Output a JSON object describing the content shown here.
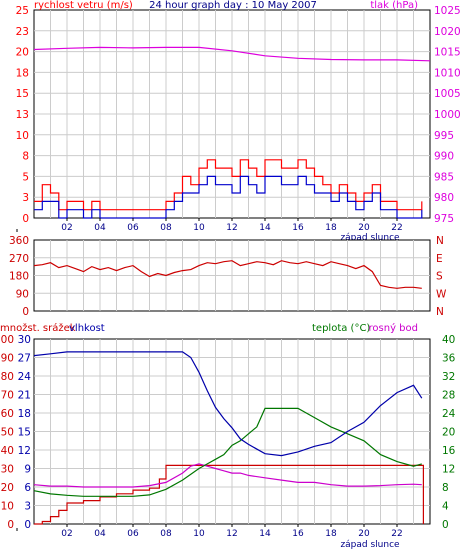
{
  "chart_data": [
    {
      "type": "line",
      "title": "24 hour graph day : 10 May 2007",
      "ylabel_left": "rychlost vetru (m/s)",
      "ylabel_right": "tlak (hPa)",
      "x_ticks": [
        "02",
        "04",
        "06",
        "08",
        "10",
        "12",
        "14",
        "16",
        "18",
        "20",
        "22"
      ],
      "x_annotation": "západ slunce",
      "x_range": [
        0,
        24
      ],
      "ylim_left": [
        0,
        25
      ],
      "ylim_right": [
        975,
        1025
      ],
      "yticks_left": [
        "0",
        "3",
        "5",
        "8",
        "10",
        "13",
        "15",
        "18",
        "20",
        "23",
        "25"
      ],
      "yticks_right": [
        "975",
        "980",
        "985",
        "990",
        "995",
        "1000",
        "1005",
        "1010",
        "1015",
        "1020",
        "1025"
      ],
      "grid": true,
      "series": [
        {
          "axis": "left",
          "color": "#ff0000",
          "x": [
            0,
            0.5,
            1,
            1.5,
            2,
            2.5,
            3,
            3.5,
            4,
            4.5,
            5,
            5.5,
            6,
            6.5,
            7,
            7.5,
            8,
            8.5,
            9,
            9.5,
            10,
            10.5,
            11,
            11.5,
            12,
            12.5,
            13,
            13.5,
            14,
            14.5,
            15,
            15.5,
            16,
            16.5,
            17,
            17.5,
            18,
            18.5,
            19,
            19.5,
            20,
            20.5,
            21,
            21.5,
            22,
            22.5,
            23,
            23.5
          ],
          "values": [
            2,
            4,
            3,
            1,
            2,
            2,
            1,
            2,
            1,
            1,
            1,
            1,
            1,
            1,
            1,
            1,
            2,
            3,
            5,
            4,
            6,
            7,
            6,
            6,
            5,
            7,
            6,
            5,
            7,
            7,
            6,
            6,
            7,
            6,
            5,
            4,
            3,
            4,
            3,
            2,
            3,
            4,
            2,
            2,
            1,
            1,
            1,
            2
          ]
        },
        {
          "axis": "left",
          "color": "#0000cc",
          "x": [
            0,
            0.5,
            1,
            1.5,
            2,
            2.5,
            3,
            3.5,
            4,
            4.5,
            5,
            5.5,
            6,
            6.5,
            7,
            7.5,
            8,
            8.5,
            9,
            9.5,
            10,
            10.5,
            11,
            11.5,
            12,
            12.5,
            13,
            13.5,
            14,
            14.5,
            15,
            15.5,
            16,
            16.5,
            17,
            17.5,
            18,
            18.5,
            19,
            19.5,
            20,
            20.5,
            21,
            21.5,
            22,
            22.5,
            23,
            23.5
          ],
          "values": [
            1,
            2,
            2,
            0,
            1,
            1,
            0,
            1,
            0,
            0,
            0,
            0,
            0,
            0,
            0,
            0,
            1,
            2,
            3,
            3,
            4,
            5,
            4,
            4,
            3,
            5,
            4,
            3,
            5,
            5,
            4,
            4,
            5,
            4,
            3,
            3,
            2,
            3,
            2,
            1,
            2,
            3,
            1,
            1,
            0,
            0,
            0,
            1
          ]
        },
        {
          "axis": "right",
          "color": "#dd00dd",
          "x": [
            0,
            2,
            4,
            6,
            8,
            10,
            12,
            14,
            16,
            18,
            20,
            22,
            24
          ],
          "values": [
            1015.5,
            1015.8,
            1016,
            1015.9,
            1016,
            1016,
            1015.2,
            1014,
            1013.4,
            1013.1,
            1013,
            1013,
            1012.8
          ]
        }
      ]
    },
    {
      "type": "scatter",
      "ylabel_right": [
        "N",
        "W",
        "S",
        "E",
        "N"
      ],
      "x_range": [
        0,
        24
      ],
      "ylim": [
        0,
        360
      ],
      "yticks_left": [
        "0",
        "90",
        "180",
        "270",
        "360"
      ],
      "series": [
        {
          "color": "#cc0000",
          "x": [
            0,
            0.5,
            1,
            1.5,
            2,
            2.5,
            3,
            3.5,
            4,
            4.5,
            5,
            5.5,
            6,
            6.5,
            7,
            7.5,
            8,
            8.5,
            9,
            9.5,
            10,
            10.5,
            11,
            11.5,
            12,
            12.5,
            13,
            13.5,
            14,
            14.5,
            15,
            15.5,
            16,
            16.5,
            17,
            17.5,
            18,
            18.5,
            19,
            19.5,
            20,
            20.5,
            21,
            21.5,
            22,
            22.5,
            23,
            23.5
          ],
          "values": [
            230,
            235,
            245,
            220,
            230,
            215,
            200,
            225,
            210,
            220,
            205,
            220,
            230,
            200,
            175,
            190,
            180,
            195,
            205,
            210,
            230,
            245,
            240,
            250,
            255,
            230,
            240,
            250,
            245,
            235,
            255,
            245,
            240,
            250,
            240,
            230,
            250,
            240,
            230,
            215,
            230,
            200,
            130,
            120,
            115,
            120,
            120,
            115
          ]
        }
      ]
    },
    {
      "type": "line",
      "ylabel_left": "množst. srážek",
      "ylabel_left2": "vlhkost",
      "ylabel_right": "teplota (°C)",
      "ylabel_right2": "rosný bod",
      "x_ticks": [
        "02",
        "04",
        "06",
        "08",
        "10",
        "12",
        "14",
        "16",
        "18",
        "20",
        "22"
      ],
      "x_annotation": "západ slunce",
      "x_range": [
        0,
        24
      ],
      "ylim_left": [
        0,
        100
      ],
      "ylim_left2": [
        0,
        30
      ],
      "ylim_right": [
        0,
        40
      ],
      "yticks_left": [
        "0",
        "10",
        "20",
        "30",
        "40",
        "50",
        "60",
        "70",
        "80",
        "90",
        "100"
      ],
      "yticks_left2": [
        "0",
        "3",
        "6",
        "9",
        "12",
        "15",
        "18",
        "21",
        "24",
        "27",
        "30"
      ],
      "yticks_right": [
        "0",
        "4",
        "8",
        "12",
        "16",
        "20",
        "24",
        "28",
        "32",
        "36",
        "40"
      ],
      "grid": true,
      "series": [
        {
          "axis": "left",
          "color": "#0000aa",
          "x": [
            0,
            1,
            2,
            3,
            4,
            5,
            6,
            7,
            8,
            9,
            9.5,
            10,
            10.5,
            11,
            11.5,
            12,
            12.5,
            13,
            14,
            15,
            16,
            17,
            18,
            19,
            20,
            21,
            22,
            23,
            23.5
          ],
          "values": [
            91,
            92,
            93,
            93,
            93,
            93,
            93,
            93,
            93,
            93,
            90,
            82,
            72,
            63,
            57,
            52,
            46,
            43,
            38,
            37,
            39,
            42,
            44,
            50,
            55,
            64,
            71,
            75,
            68
          ]
        },
        {
          "axis": "right",
          "color": "#007700",
          "x": [
            0,
            1,
            2,
            3,
            4,
            5,
            6,
            7,
            8,
            9,
            10,
            10.5,
            11,
            11.5,
            12,
            12.5,
            13,
            13.5,
            14,
            15,
            16,
            17,
            18,
            19,
            20,
            21,
            22,
            23,
            23.5
          ],
          "values": [
            7.2,
            6.5,
            6.2,
            6,
            6,
            6,
            6,
            6.3,
            7.5,
            9.5,
            12,
            13,
            14,
            15,
            17,
            18,
            19.5,
            21,
            25,
            25,
            25,
            23,
            21,
            19.5,
            18,
            15,
            13.5,
            12.5,
            13
          ]
        },
        {
          "axis": "right",
          "color": "#cc00cc",
          "x": [
            0,
            1,
            2,
            3,
            4,
            5,
            6,
            7,
            8,
            9,
            9.5,
            10,
            10.5,
            11,
            11.5,
            12,
            12.5,
            13,
            14,
            15,
            16,
            17,
            18,
            19,
            20,
            21,
            22,
            23,
            23.5
          ],
          "values": [
            8.5,
            8.2,
            8.2,
            8,
            8,
            8,
            8,
            8.3,
            9,
            11,
            12.5,
            13,
            12.5,
            12,
            11.5,
            11,
            11,
            10.5,
            10,
            9.5,
            9,
            9,
            8.5,
            8.2,
            8.2,
            8.3,
            8.5,
            8.6,
            8.5
          ]
        },
        {
          "axis": "left2",
          "color": "#cc0000",
          "x": [
            0,
            0.5,
            1,
            1.5,
            2,
            3,
            4,
            5,
            6,
            7,
            7.6,
            8,
            9,
            10,
            12,
            14,
            16,
            18,
            20,
            22,
            23.5,
            23.6
          ],
          "values": [
            0,
            0.4,
            1.2,
            2.2,
            3.4,
            3.8,
            4.4,
            4.9,
            5.5,
            5.8,
            7.3,
            9.5,
            9.5,
            9.5,
            9.5,
            9.5,
            9.5,
            9.5,
            9.5,
            9.5,
            9.5,
            0
          ]
        }
      ]
    }
  ]
}
